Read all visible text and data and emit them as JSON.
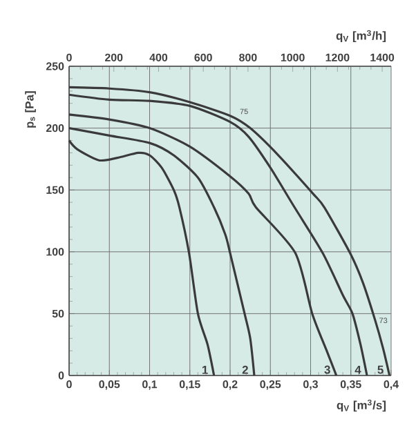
{
  "chart_data": {
    "type": "line",
    "xlabel": "q$_{V}$ [m$^{3}$/s]",
    "ylabel": "p$_{s}$ [Pa]",
    "x2label": "q$_{V}$ [m$^{3}$/h]",
    "xlim": [
      0,
      0.4
    ],
    "ylim": [
      0,
      250
    ],
    "x2lim": [
      0,
      1440
    ],
    "xticks": [
      0,
      {
        "value": 0.05,
        "label": "0,05"
      },
      {
        "value": 0.1,
        "label": "0,1"
      },
      {
        "value": 0.15,
        "label": "0,15"
      },
      {
        "value": 0.2,
        "label": "0,2"
      },
      {
        "value": 0.25,
        "label": "0,25"
      },
      {
        "value": 0.3,
        "label": "0,3"
      },
      {
        "value": 0.35,
        "label": "0,35"
      },
      {
        "value": 0.4,
        "label": "0,4"
      }
    ],
    "yticks": [
      0,
      50,
      100,
      150,
      200,
      250
    ],
    "x2ticks": [
      0,
      200,
      400,
      600,
      800,
      1000,
      1200,
      1400
    ],
    "grid": true,
    "series": [
      {
        "name": "1",
        "color": "#3a3a3a",
        "x": [
          0,
          0.01,
          0.037,
          0.06,
          0.086,
          0.1,
          0.115,
          0.13,
          0.137,
          0.149,
          0.16,
          0.172,
          0.18
        ],
        "values": [
          190,
          183,
          174,
          176,
          180,
          178,
          168,
          150,
          136,
          99,
          50,
          25,
          0
        ]
      },
      {
        "name": "2",
        "color": "#3a3a3a",
        "x": [
          0,
          0.05,
          0.1,
          0.13,
          0.16,
          0.18,
          0.194,
          0.2,
          0.218,
          0.225,
          0.23
        ],
        "values": [
          200,
          194,
          188,
          178,
          160,
          136,
          114,
          99,
          50,
          30,
          0
        ]
      },
      {
        "name": "3",
        "color": "#3a3a3a",
        "x": [
          0,
          0.05,
          0.1,
          0.15,
          0.2,
          0.223,
          0.232,
          0.281,
          0.302,
          0.32,
          0.332
        ],
        "values": [
          211,
          207,
          200,
          185,
          161,
          147,
          136,
          99,
          50,
          20,
          0
        ]
      },
      {
        "name": "4",
        "color": "#3a3a3a",
        "x": [
          0,
          0.05,
          0.1,
          0.15,
          0.2,
          0.223,
          0.25,
          0.28,
          0.315,
          0.34,
          0.352,
          0.362,
          0.37
        ],
        "values": [
          227,
          223,
          222,
          218,
          205,
          193,
          168,
          136,
          99,
          65,
          50,
          25,
          0
        ]
      },
      {
        "name": "5",
        "color": "#3a3a3a",
        "x": [
          0,
          0.05,
          0.1,
          0.15,
          0.2,
          0.225,
          0.26,
          0.303,
          0.317,
          0.349,
          0.365,
          0.38,
          0.39,
          0.398
        ],
        "values": [
          233,
          232,
          229,
          221,
          210,
          200,
          178,
          147,
          136,
          99,
          75,
          45,
          22,
          0
        ]
      }
    ],
    "annotations": [
      {
        "text": "75",
        "x": 0.21,
        "y": 210
      },
      {
        "text": "73",
        "x": 0.383,
        "y": 41
      }
    ]
  }
}
